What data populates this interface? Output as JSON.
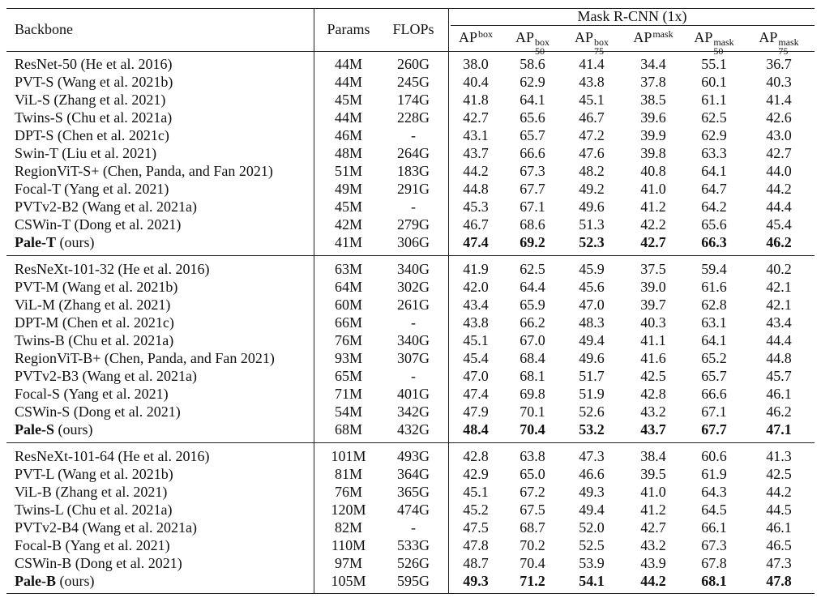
{
  "header": {
    "backbone": "Backbone",
    "params": "Params",
    "flops": "FLOPs",
    "group": "Mask R-CNN (1x)",
    "metrics": [
      {
        "base": "AP",
        "sup": "box"
      },
      {
        "base": "AP",
        "sup": "box",
        "sub": "50"
      },
      {
        "base": "AP",
        "sup": "box",
        "sub": "75"
      },
      {
        "base": "AP",
        "sup": "mask"
      },
      {
        "base": "AP",
        "sup": "mask",
        "sub": "50"
      },
      {
        "base": "AP",
        "sup": "mask",
        "sub": "75"
      }
    ]
  },
  "groups": [
    {
      "rows": [
        {
          "model": "ResNet-50",
          "citation": "(He et al. 2016)",
          "params": "44M",
          "flops": "260G",
          "values": [
            "38.0",
            "58.6",
            "41.4",
            "34.4",
            "55.1",
            "36.7"
          ]
        },
        {
          "model": "PVT-S",
          "citation": "(Wang et al. 2021b)",
          "params": "44M",
          "flops": "245G",
          "values": [
            "40.4",
            "62.9",
            "43.8",
            "37.8",
            "60.1",
            "40.3"
          ]
        },
        {
          "model": "ViL-S",
          "citation": "(Zhang et al. 2021)",
          "params": "45M",
          "flops": "174G",
          "values": [
            "41.8",
            "64.1",
            "45.1",
            "38.5",
            "61.1",
            "41.4"
          ]
        },
        {
          "model": "Twins-S",
          "citation": "(Chu et al. 2021a)",
          "params": "44M",
          "flops": "228G",
          "values": [
            "42.7",
            "65.6",
            "46.7",
            "39.6",
            "62.5",
            "42.6"
          ]
        },
        {
          "model": "DPT-S",
          "citation": "(Chen et al. 2021c)",
          "params": "46M",
          "flops": "-",
          "values": [
            "43.1",
            "65.7",
            "47.2",
            "39.9",
            "62.9",
            "43.0"
          ]
        },
        {
          "model": "Swin-T",
          "citation": "(Liu et al. 2021)",
          "params": "48M",
          "flops": "264G",
          "values": [
            "43.7",
            "66.6",
            "47.6",
            "39.8",
            "63.3",
            "42.7"
          ]
        },
        {
          "model": "RegionViT-S+",
          "citation": "(Chen, Panda, and Fan 2021)",
          "params": "51M",
          "flops": "183G",
          "values": [
            "44.2",
            "67.3",
            "48.2",
            "40.8",
            "64.1",
            "44.0"
          ]
        },
        {
          "model": "Focal-T",
          "citation": "(Yang et al. 2021)",
          "params": "49M",
          "flops": "291G",
          "values": [
            "44.8",
            "67.7",
            "49.2",
            "41.0",
            "64.7",
            "44.2"
          ]
        },
        {
          "model": "PVTv2-B2",
          "citation": "(Wang et al. 2021a)",
          "params": "45M",
          "flops": "-",
          "values": [
            "45.3",
            "67.1",
            "49.6",
            "41.2",
            "64.2",
            "44.4"
          ]
        },
        {
          "model": "CSWin-T",
          "citation": "(Dong et al. 2021)",
          "params": "42M",
          "flops": "279G",
          "values": [
            "46.7",
            "68.6",
            "51.3",
            "42.2",
            "65.6",
            "45.4"
          ]
        },
        {
          "model": "Pale-T",
          "citation": "(ours)",
          "params": "41M",
          "flops": "306G",
          "values": [
            "47.4",
            "69.2",
            "52.3",
            "42.7",
            "66.3",
            "46.2"
          ],
          "highlight": true
        }
      ]
    },
    {
      "rows": [
        {
          "model": "ResNeXt-101-32",
          "citation": "(He et al. 2016)",
          "params": "63M",
          "flops": "340G",
          "values": [
            "41.9",
            "62.5",
            "45.9",
            "37.5",
            "59.4",
            "40.2"
          ]
        },
        {
          "model": "PVT-M",
          "citation": "(Wang et al. 2021b)",
          "params": "64M",
          "flops": "302G",
          "values": [
            "42.0",
            "64.4",
            "45.6",
            "39.0",
            "61.6",
            "42.1"
          ]
        },
        {
          "model": "ViL-M",
          "citation": "(Zhang et al. 2021)",
          "params": "60M",
          "flops": "261G",
          "values": [
            "43.4",
            "65.9",
            "47.0",
            "39.7",
            "62.8",
            "42.1"
          ]
        },
        {
          "model": "DPT-M",
          "citation": "(Chen et al. 2021c)",
          "params": "66M",
          "flops": "-",
          "values": [
            "43.8",
            "66.2",
            "48.3",
            "40.3",
            "63.1",
            "43.4"
          ]
        },
        {
          "model": "Twins-B",
          "citation": "(Chu et al. 2021a)",
          "params": "76M",
          "flops": "340G",
          "values": [
            "45.1",
            "67.0",
            "49.4",
            "41.1",
            "64.1",
            "44.4"
          ]
        },
        {
          "model": "RegionViT-B+",
          "citation": "(Chen, Panda, and Fan 2021)",
          "params": "93M",
          "flops": "307G",
          "values": [
            "45.4",
            "68.4",
            "49.6",
            "41.6",
            "65.2",
            "44.8"
          ]
        },
        {
          "model": "PVTv2-B3",
          "citation": "(Wang et al. 2021a)",
          "params": "65M",
          "flops": "-",
          "values": [
            "47.0",
            "68.1",
            "51.7",
            "42.5",
            "65.7",
            "45.7"
          ]
        },
        {
          "model": "Focal-S",
          "citation": "(Yang et al. 2021)",
          "params": "71M",
          "flops": "401G",
          "values": [
            "47.4",
            "69.8",
            "51.9",
            "42.8",
            "66.6",
            "46.1"
          ]
        },
        {
          "model": "CSWin-S",
          "citation": "(Dong et al. 2021)",
          "params": "54M",
          "flops": "342G",
          "values": [
            "47.9",
            "70.1",
            "52.6",
            "43.2",
            "67.1",
            "46.2"
          ]
        },
        {
          "model": "Pale-S",
          "citation": "(ours)",
          "params": "68M",
          "flops": "432G",
          "values": [
            "48.4",
            "70.4",
            "53.2",
            "43.7",
            "67.7",
            "47.1"
          ],
          "highlight": true
        }
      ]
    },
    {
      "rows": [
        {
          "model": "ResNeXt-101-64",
          "citation": "(He et al. 2016)",
          "params": "101M",
          "flops": "493G",
          "values": [
            "42.8",
            "63.8",
            "47.3",
            "38.4",
            "60.6",
            "41.3"
          ]
        },
        {
          "model": "PVT-L",
          "citation": "(Wang et al. 2021b)",
          "params": "81M",
          "flops": "364G",
          "values": [
            "42.9",
            "65.0",
            "46.6",
            "39.5",
            "61.9",
            "42.5"
          ]
        },
        {
          "model": "ViL-B",
          "citation": "(Zhang et al. 2021)",
          "params": "76M",
          "flops": "365G",
          "values": [
            "45.1",
            "67.2",
            "49.3",
            "41.0",
            "64.3",
            "44.2"
          ]
        },
        {
          "model": "Twins-L",
          "citation": "(Chu et al. 2021a)",
          "params": "120M",
          "flops": "474G",
          "values": [
            "45.2",
            "67.5",
            "49.4",
            "41.2",
            "64.5",
            "44.5"
          ]
        },
        {
          "model": "PVTv2-B4",
          "citation": "(Wang et al. 2021a)",
          "params": "82M",
          "flops": "-",
          "values": [
            "47.5",
            "68.7",
            "52.0",
            "42.7",
            "66.1",
            "46.1"
          ]
        },
        {
          "model": "Focal-B",
          "citation": "(Yang et al. 2021)",
          "params": "110M",
          "flops": "533G",
          "values": [
            "47.8",
            "70.2",
            "52.5",
            "43.2",
            "67.3",
            "46.5"
          ]
        },
        {
          "model": "CSWin-B",
          "citation": "(Dong et al. 2021)",
          "params": "97M",
          "flops": "526G",
          "values": [
            "48.7",
            "70.4",
            "53.9",
            "43.9",
            "67.8",
            "47.3"
          ]
        },
        {
          "model": "Pale-B",
          "citation": "(ours)",
          "params": "105M",
          "flops": "595G",
          "values": [
            "49.3",
            "71.2",
            "54.1",
            "44.2",
            "68.1",
            "47.8"
          ],
          "highlight": true
        }
      ]
    }
  ]
}
